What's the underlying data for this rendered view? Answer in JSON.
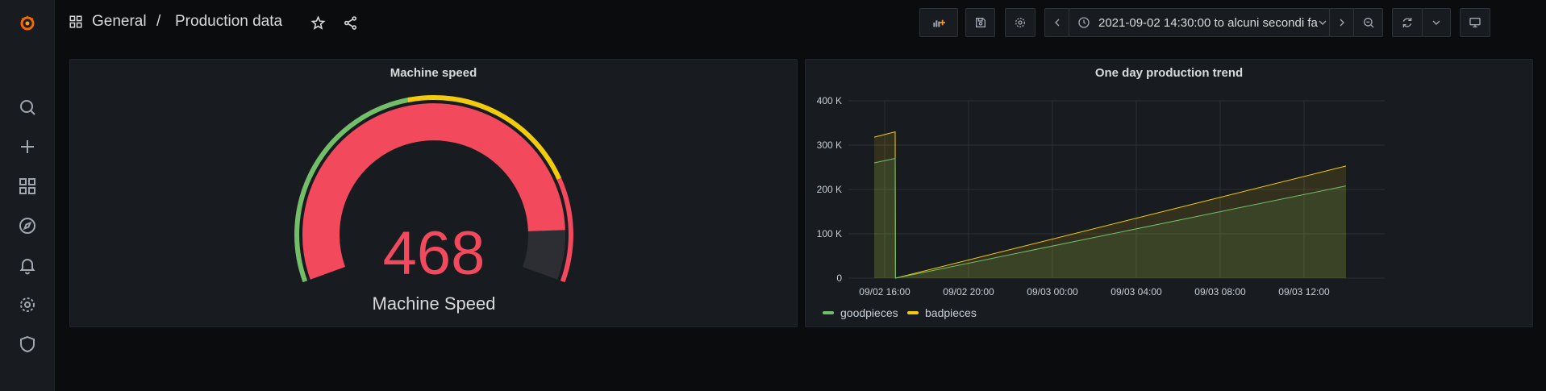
{
  "breadcrumb": {
    "folder": "General",
    "separator": "/",
    "dashboard": "Production data"
  },
  "time_range": {
    "label": "2021-09-02 14:30:00 to alcuni secondi fa"
  },
  "colors": {
    "good": "#73bf69",
    "bad": "#f2cc0c",
    "red": "#f2495c",
    "orange": "#ff9830",
    "bg": "#0b0c0e",
    "panel": "#181b1f"
  },
  "icons": {
    "sidebar": [
      "grafana-logo-icon",
      "search-icon",
      "plus-icon",
      "dashboards-icon",
      "explore-icon",
      "alert-bell-icon",
      "gear-icon",
      "shield-icon"
    ],
    "toolbar": [
      "add-panel-icon",
      "save-icon",
      "settings-icon",
      "chevron-left-icon",
      "clock-icon",
      "chevron-down-icon",
      "chevron-right-icon",
      "zoom-out-icon",
      "refresh-icon",
      "chevron-down-icon",
      "tv-mode-icon"
    ]
  },
  "gauge_panel": {
    "title": "Machine speed",
    "value": "468",
    "label": "Machine Speed",
    "value_fraction": 0.9,
    "thresholds": [
      {
        "color": "#73bf69",
        "to": 0.45
      },
      {
        "color": "#f2cc0c",
        "to": 0.8
      },
      {
        "color": "#f2495c",
        "to": 1.0
      }
    ]
  },
  "trend_panel": {
    "title": "One day production trend",
    "y_ticks": [
      "400 K",
      "300 K",
      "200 K",
      "100 K",
      "0"
    ],
    "x_ticks": [
      "09/02 16:00",
      "09/02 20:00",
      "09/03 00:00",
      "09/03 04:00",
      "09/03 08:00",
      "09/03 12:00"
    ],
    "legend": [
      {
        "name": "goodpieces",
        "color": "#73bf69"
      },
      {
        "name": "badpieces",
        "color": "#f2cc0c"
      }
    ]
  },
  "chart_data": {
    "type": "area",
    "title": "One day production trend",
    "x": [
      "09/02 15:30",
      "09/02 16:30",
      "09/02 16:31",
      "09/03 14:00"
    ],
    "series": [
      {
        "name": "goodpieces",
        "values": [
          260000,
          270000,
          0,
          208000
        ]
      },
      {
        "name": "badpieces",
        "values": [
          318000,
          330000,
          0,
          253000
        ]
      }
    ],
    "ylim": [
      0,
      400000
    ],
    "grid": true,
    "legend_position": "bottom-left"
  }
}
